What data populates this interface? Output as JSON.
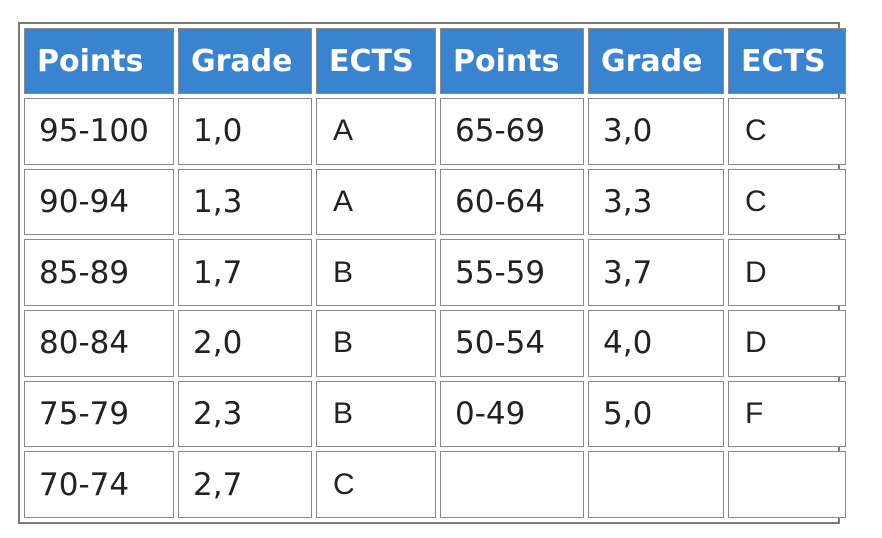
{
  "headers": [
    "Points",
    "Grade",
    "ECTS",
    "Points",
    "Grade",
    "ECTS"
  ],
  "rows": [
    [
      "95-100",
      "1,0",
      "A",
      "65-69",
      "3,0",
      "C"
    ],
    [
      "90-94",
      "1,3",
      "A",
      "60-64",
      "3,3",
      "C"
    ],
    [
      "85-89",
      "1,7",
      "B",
      "55-59",
      "3,7",
      "D"
    ],
    [
      "80-84",
      "2,0",
      "B",
      "50-54",
      "4,0",
      "D"
    ],
    [
      "75-79",
      "2,3",
      "B",
      "0-49",
      "5,0",
      "F"
    ],
    [
      "70-74",
      "2,7",
      "C",
      "",
      "",
      ""
    ]
  ],
  "colors": {
    "header_bg": "#3a83cf",
    "header_text": "#ffffff",
    "cell_border": "#8a8a8a"
  }
}
